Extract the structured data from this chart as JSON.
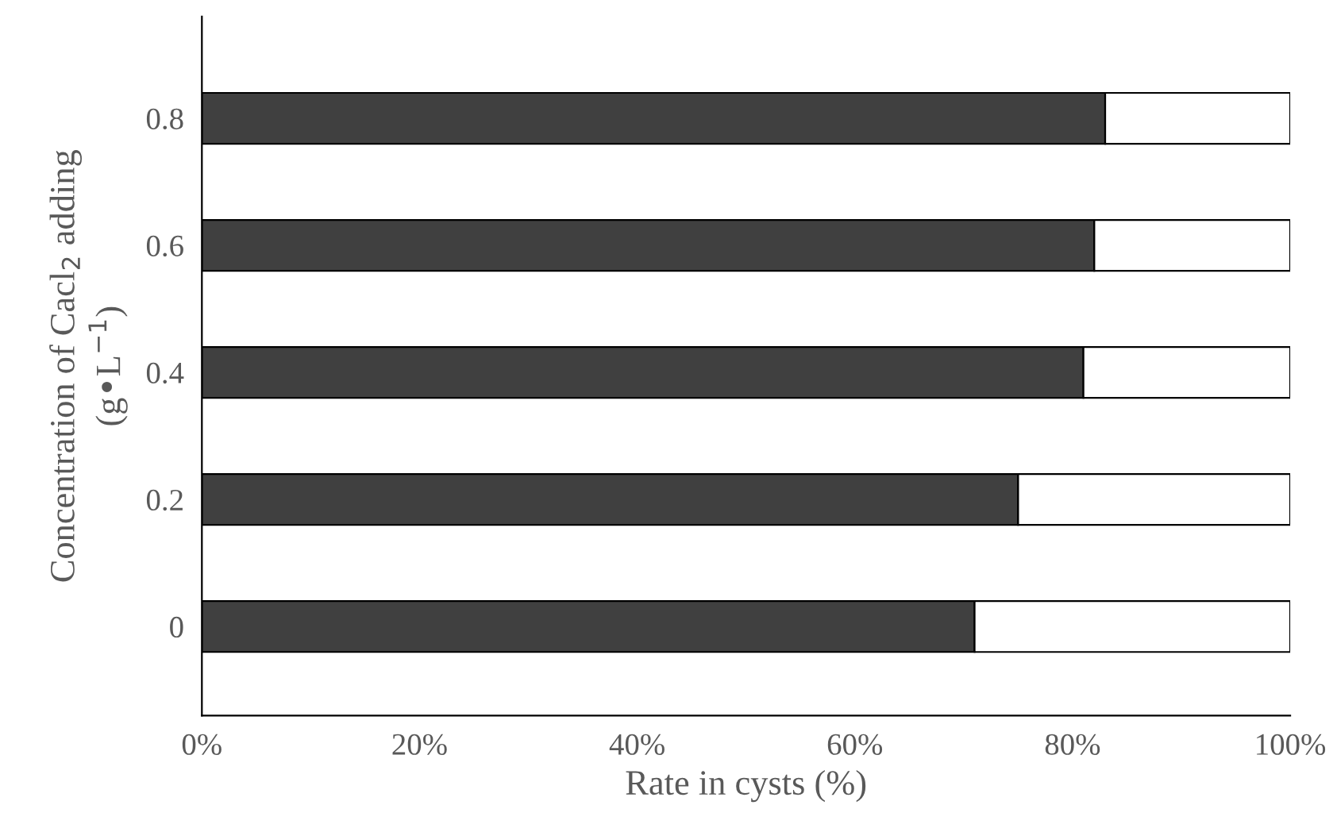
{
  "chart_data": {
    "type": "bar",
    "orientation": "horizontal",
    "stacked": true,
    "xlabel": "Rate in cysts (%)",
    "ylabel": "Concentration of Cacl$_{2}$ adding\n(g•L$^{−1}$)",
    "categories": [
      "0.8",
      "0.6",
      "0.4",
      "0.2",
      "0"
    ],
    "series": [
      {
        "color": "#404040",
        "values": [
          83,
          82,
          81,
          75,
          71
        ]
      },
      {
        "color": "#ffffff",
        "values": [
          17,
          18,
          19,
          25,
          29
        ]
      }
    ],
    "xlim": [
      0,
      100
    ],
    "xticks": [
      {
        "value": 0,
        "label": "0%"
      },
      {
        "value": 20,
        "label": "20%"
      },
      {
        "value": 40,
        "label": "40%"
      },
      {
        "value": 60,
        "label": "60%"
      },
      {
        "value": 80,
        "label": "80%"
      },
      {
        "value": 100,
        "label": "100%"
      }
    ],
    "grid": false,
    "legend": false
  }
}
